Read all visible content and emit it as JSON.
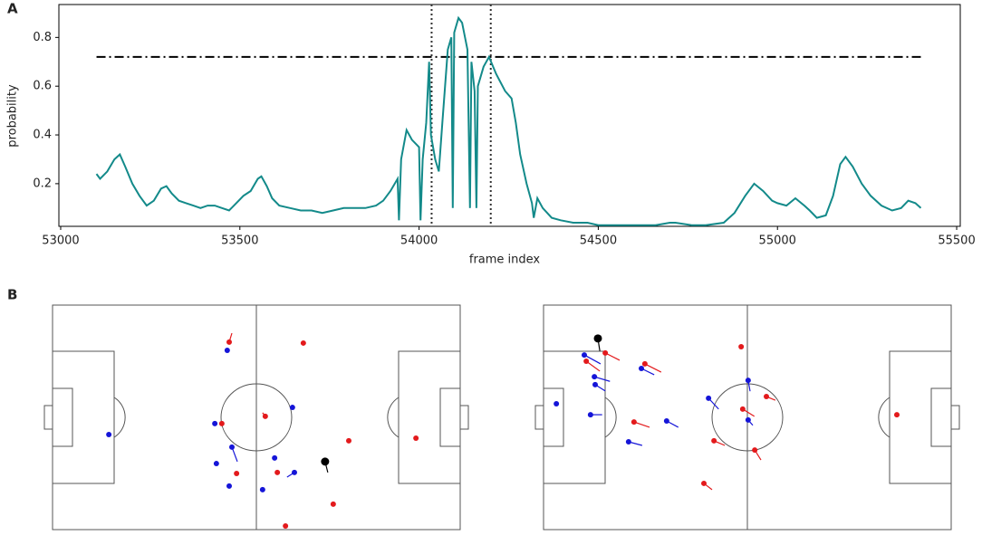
{
  "chart_data": [
    {
      "type": "line",
      "panel": "A",
      "xlabel": "frame index",
      "ylabel": "probability",
      "x": [
        53100,
        53110,
        53130,
        53150,
        53165,
        53180,
        53200,
        53220,
        53240,
        53260,
        53280,
        53295,
        53310,
        53330,
        53350,
        53370,
        53390,
        53410,
        53430,
        53450,
        53470,
        53490,
        53510,
        53530,
        53550,
        53560,
        53575,
        53590,
        53610,
        53640,
        53670,
        53700,
        53730,
        53760,
        53790,
        53820,
        53850,
        53880,
        53900,
        53920,
        53940,
        53944,
        53950,
        53965,
        53980,
        54000,
        54004,
        54010,
        54020,
        54028,
        54033,
        54045,
        54055,
        54065,
        54080,
        54090,
        54094,
        54098,
        54110,
        54120,
        54135,
        54142,
        54146,
        54155,
        54160,
        54164,
        54180,
        54195,
        54215,
        54240,
        54258,
        54270,
        54282,
        54300,
        54315,
        54320,
        54330,
        54345,
        54370,
        54395,
        54430,
        54470,
        54500,
        54540,
        54580,
        54620,
        54660,
        54700,
        54715,
        54760,
        54800,
        54850,
        54880,
        54910,
        54935,
        54960,
        54985,
        55000,
        55025,
        55050,
        55075,
        55090,
        55110,
        55135,
        55155,
        55175,
        55190,
        55210,
        55235,
        55260,
        55290,
        55320,
        55345,
        55365,
        55385,
        55400
      ],
      "series": [
        {
          "color": "#138a8a",
          "values": [
            0.24,
            0.22,
            0.25,
            0.3,
            0.32,
            0.27,
            0.2,
            0.15,
            0.11,
            0.13,
            0.18,
            0.19,
            0.16,
            0.13,
            0.12,
            0.11,
            0.1,
            0.11,
            0.11,
            0.1,
            0.09,
            0.12,
            0.15,
            0.17,
            0.22,
            0.23,
            0.19,
            0.14,
            0.11,
            0.1,
            0.09,
            0.09,
            0.08,
            0.09,
            0.1,
            0.1,
            0.1,
            0.11,
            0.13,
            0.17,
            0.22,
            0.05,
            0.3,
            0.42,
            0.38,
            0.35,
            0.05,
            0.3,
            0.45,
            0.7,
            0.4,
            0.3,
            0.25,
            0.45,
            0.75,
            0.8,
            0.1,
            0.82,
            0.88,
            0.86,
            0.75,
            0.1,
            0.7,
            0.58,
            0.1,
            0.6,
            0.68,
            0.72,
            0.65,
            0.58,
            0.55,
            0.45,
            0.32,
            0.2,
            0.12,
            0.06,
            0.14,
            0.1,
            0.06,
            0.05,
            0.04,
            0.04,
            0.03,
            0.03,
            0.03,
            0.03,
            0.03,
            0.04,
            0.04,
            0.03,
            0.03,
            0.04,
            0.08,
            0.15,
            0.2,
            0.17,
            0.13,
            0.12,
            0.11,
            0.14,
            0.11,
            0.09,
            0.06,
            0.07,
            0.15,
            0.28,
            0.31,
            0.27,
            0.2,
            0.15,
            0.11,
            0.09,
            0.1,
            0.13,
            0.12,
            0.1
          ]
        }
      ],
      "hline": 0.72,
      "vlines": [
        54035,
        54200
      ],
      "xlim": [
        52995,
        55510
      ],
      "xticks": [
        53000,
        53500,
        54000,
        54500,
        55000,
        55500
      ],
      "ylim": [
        0.025,
        0.935
      ],
      "yticks": [
        0.2,
        0.4,
        0.6,
        0.8
      ]
    },
    {
      "type": "pitch",
      "panel": "B",
      "xlim": [
        0,
        105
      ],
      "ylim": [
        0,
        68
      ],
      "series": [
        {
          "color": "#e31a1c",
          "x": [
            45.5,
            64.6,
            43.6,
            54.8,
            76.3,
            93.6,
            47.4,
            57.9,
            72.3,
            60.0
          ],
          "y": [
            56.8,
            56.5,
            32.1,
            34.3,
            26.9,
            27.7,
            17.0,
            17.3,
            7.7,
            1.1
          ],
          "vx": [
            0.7,
            0,
            0,
            -0.7,
            0,
            0,
            0,
            0,
            0,
            0
          ],
          "vy": [
            2.7,
            0,
            0,
            1.1,
            0,
            0,
            0,
            0,
            0,
            0
          ]
        },
        {
          "color": "#1515d8",
          "x": [
            45.0,
            14.5,
            41.8,
            61.8,
            46.2,
            42.2,
            57.2,
            62.3,
            45.5,
            54.1
          ],
          "y": [
            54.3,
            28.8,
            32.1,
            37.0,
            25.0,
            20.0,
            21.7,
            17.3,
            13.2,
            12.1
          ],
          "vx": [
            0,
            0,
            0,
            0,
            1.4,
            0,
            0,
            -1.9,
            0,
            0
          ],
          "vy": [
            0,
            0,
            0,
            0,
            -4.4,
            0,
            0,
            -1.4,
            0,
            0
          ]
        },
        {
          "color": "#000000",
          "x": [
            70.2
          ],
          "y": [
            20.6
          ],
          "vx": [
            0.7
          ],
          "vy": [
            -3.3
          ]
        }
      ]
    },
    {
      "type": "pitch",
      "xlim": [
        0,
        105
      ],
      "ylim": [
        0,
        68
      ],
      "series": [
        {
          "color": "#e31a1c",
          "x": [
            15.9,
            11.0,
            26.1,
            50.9,
            57.4,
            51.3,
            23.3,
            43.9,
            54.4,
            41.3,
            91.0
          ],
          "y": [
            53.5,
            51.0,
            50.2,
            55.4,
            40.3,
            36.5,
            32.6,
            26.9,
            24.1,
            14.0,
            34.8
          ],
          "vx": [
            3.7,
            3.5,
            4.2,
            0,
            2.3,
            3.0,
            4.0,
            2.8,
            1.6,
            2.1,
            0
          ],
          "vy": [
            -2.2,
            -3.0,
            -2.5,
            0,
            -1.1,
            -2.2,
            -1.6,
            -1.4,
            -3.0,
            -1.9,
            0
          ]
        },
        {
          "color": "#1515d8",
          "x": [
            10.5,
            13.1,
            13.3,
            25.2,
            3.3,
            12.1,
            31.7,
            21.9,
            42.5,
            52.7,
            52.7
          ],
          "y": [
            52.9,
            46.3,
            43.9,
            48.8,
            38.1,
            34.8,
            32.9,
            26.6,
            39.8,
            45.2,
            33.2
          ],
          "vx": [
            4.2,
            4.0,
            2.6,
            3.3,
            0,
            3.0,
            3.0,
            3.5,
            2.6,
            0.5,
            1.2
          ],
          "vy": [
            -2.7,
            -1.4,
            -1.9,
            -1.9,
            0,
            0,
            -1.9,
            -1.1,
            -3.3,
            -3.3,
            -1.6
          ]
        },
        {
          "color": "#000000",
          "x": [
            14.0
          ],
          "y": [
            57.9
          ],
          "vx": [
            0.5
          ],
          "vy": [
            -3.8
          ]
        }
      ]
    }
  ]
}
